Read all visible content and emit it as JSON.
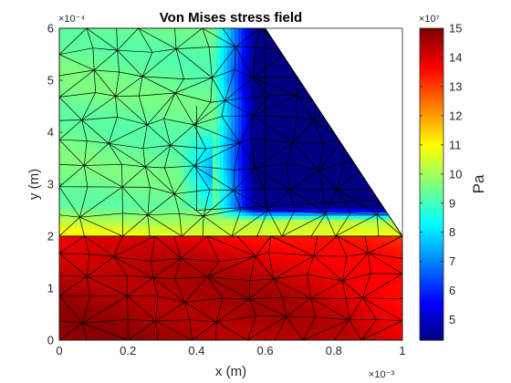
{
  "chart_data": {
    "type": "heatmap",
    "title": "Von Mises stress field",
    "xlabel": "x (m)",
    "ylabel": "y (m)",
    "x_exponent": "×10⁻³",
    "y_exponent": "×10⁻⁴",
    "xlim": [
      0,
      1
    ],
    "ylim": [
      0,
      6
    ],
    "xticks": [
      "0",
      "0.2",
      "0.4",
      "0.6",
      "0.8",
      "1"
    ],
    "yticks": [
      "0",
      "1",
      "2",
      "3",
      "4",
      "5",
      "6"
    ],
    "colorbar": {
      "label": "Pa",
      "exponent": "×10⁷",
      "limits": [
        4.3,
        15
      ],
      "ticks": [
        "5",
        "6",
        "7",
        "8",
        "9",
        "10",
        "11",
        "12",
        "13",
        "14",
        "15"
      ],
      "colormap": "jet"
    },
    "domain_outline": [
      [
        0,
        0
      ],
      [
        1,
        0
      ],
      [
        1,
        2
      ],
      [
        0.6,
        6
      ],
      [
        0,
        6
      ]
    ],
    "regions": [
      {
        "name": "bottom",
        "x": [
          0,
          1
        ],
        "y": [
          0,
          2
        ],
        "value_range": [
          12.5,
          15
        ]
      },
      {
        "name": "top-left",
        "x": [
          0,
          0.6
        ],
        "y": [
          2,
          6
        ],
        "value_range": [
          8,
          11
        ]
      },
      {
        "name": "top-right-triangle",
        "x": [
          0.4,
          1
        ],
        "y": [
          2.5,
          6
        ],
        "value_range": [
          4.3,
          8
        ]
      }
    ],
    "grid": false
  }
}
